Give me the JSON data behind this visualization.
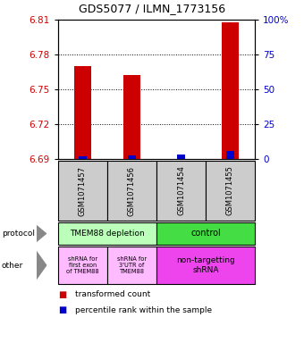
{
  "title": "GDS5077 / ILMN_1773156",
  "samples": [
    "GSM1071457",
    "GSM1071456",
    "GSM1071454",
    "GSM1071455"
  ],
  "red_values": [
    6.77,
    6.762,
    6.69,
    6.808
  ],
  "blue_values": [
    6.692,
    6.693,
    6.694,
    6.697
  ],
  "ymin": 6.69,
  "ymax": 6.81,
  "yticks": [
    6.69,
    6.72,
    6.75,
    6.78,
    6.81
  ],
  "right_yticks": [
    0,
    25,
    50,
    75,
    100
  ],
  "right_yticklabels": [
    "0",
    "25",
    "50",
    "75",
    "100%"
  ],
  "bar_width": 0.35,
  "blue_bar_width": 0.18,
  "red_color": "#cc0000",
  "blue_color": "#0000cc",
  "proto_left_color": "#bbffbb",
  "proto_right_color": "#44dd44",
  "other_left_color": "#ffbbff",
  "other_right_color": "#ee44ee",
  "sample_box_color": "#cccccc",
  "arrow_color": "#888888"
}
